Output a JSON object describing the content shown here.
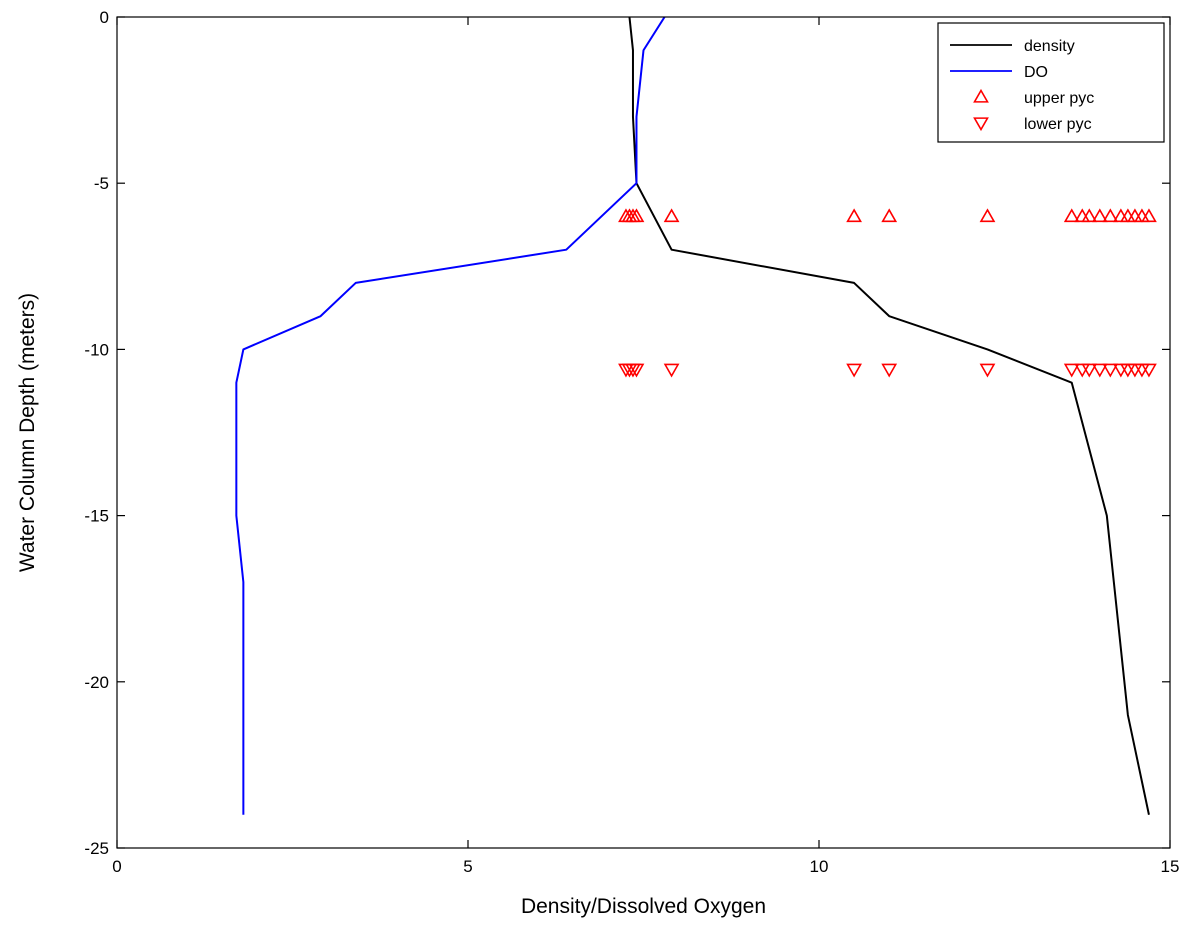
{
  "chart_data": {
    "type": "line",
    "title": "",
    "xlabel": "Density/Dissolved Oxygen",
    "ylabel": "Water Column Depth (meters)",
    "xlim": [
      0,
      15
    ],
    "ylim": [
      -25,
      0
    ],
    "xticks": [
      0,
      5,
      10,
      15
    ],
    "yticks": [
      0,
      -5,
      -10,
      -15,
      -20,
      -25
    ],
    "xtick_labels": [
      "0",
      "5",
      "10",
      "15"
    ],
    "ytick_labels": [
      "0",
      "-5",
      "-10",
      "-15",
      "-20",
      "-25"
    ],
    "grid": false,
    "legend_position": "top-right",
    "series": [
      {
        "name": "density",
        "kind": "line",
        "color": "#000000",
        "x": [
          7.3,
          7.35,
          7.35,
          7.4,
          7.9,
          10.5,
          11.0,
          12.4,
          13.6,
          14.1,
          14.2,
          14.4,
          14.7
        ],
        "y": [
          0,
          -1,
          -3,
          -5,
          -7,
          -8,
          -9,
          -10,
          -11,
          -15,
          -17,
          -21,
          -24
        ]
      },
      {
        "name": "DO",
        "kind": "line",
        "color": "#0000ff",
        "x": [
          7.8,
          7.5,
          7.4,
          7.4,
          6.4,
          3.4,
          2.9,
          1.8,
          1.7,
          1.7,
          1.8,
          1.8
        ],
        "y": [
          0,
          -1,
          -3,
          -5,
          -7,
          -8,
          -9,
          -10,
          -11,
          -15,
          -17,
          -24
        ]
      },
      {
        "name": "upper pyc",
        "kind": "marker",
        "marker": "triangle-up",
        "color": "#ff0000",
        "x": [
          7.25,
          7.3,
          7.35,
          7.4,
          7.9,
          10.5,
          11.0,
          12.4,
          13.6,
          13.75,
          13.85,
          14.0,
          14.15,
          14.3,
          14.4,
          14.5,
          14.6,
          14.7
        ],
        "y": [
          -6,
          -6,
          -6,
          -6,
          -6,
          -6,
          -6,
          -6,
          -6,
          -6,
          -6,
          -6,
          -6,
          -6,
          -6,
          -6,
          -6,
          -6
        ]
      },
      {
        "name": "lower pyc",
        "kind": "marker",
        "marker": "triangle-down",
        "color": "#ff0000",
        "x": [
          7.25,
          7.3,
          7.35,
          7.4,
          7.9,
          10.5,
          11.0,
          12.4,
          13.6,
          13.75,
          13.85,
          14.0,
          14.15,
          14.3,
          14.4,
          14.5,
          14.6,
          14.7
        ],
        "y": [
          -10.6,
          -10.6,
          -10.6,
          -10.6,
          -10.6,
          -10.6,
          -10.6,
          -10.6,
          -10.6,
          -10.6,
          -10.6,
          -10.6,
          -10.6,
          -10.6,
          -10.6,
          -10.6,
          -10.6,
          -10.6
        ]
      }
    ]
  }
}
